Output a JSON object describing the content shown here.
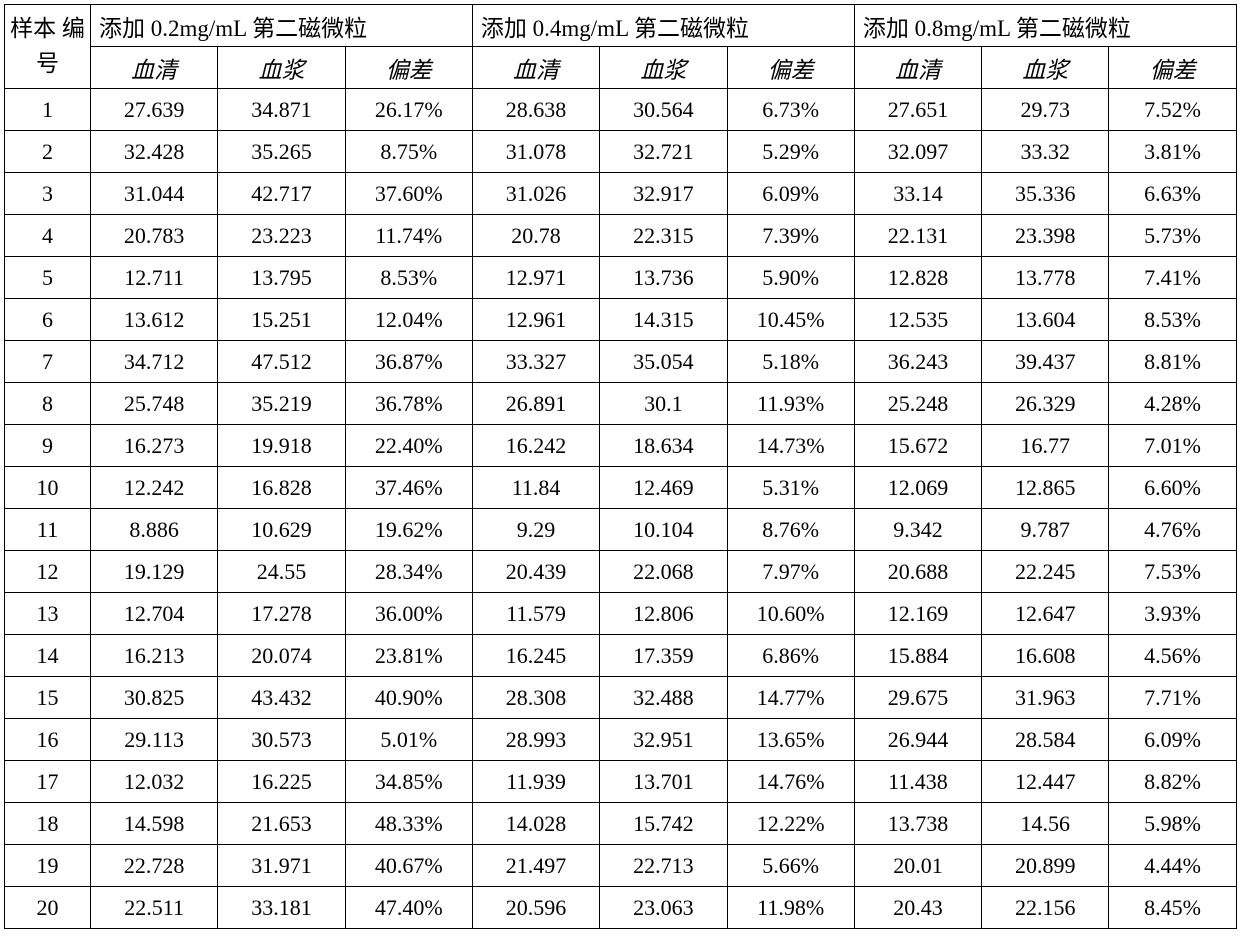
{
  "table": {
    "rowHeader": "样本\n编号",
    "groups": [
      {
        "title": "添加 0.2mg/mL 第二磁微粒",
        "subcols": [
          "血清",
          "血浆",
          "偏差"
        ]
      },
      {
        "title": "添加 0.4mg/mL 第二磁微粒",
        "subcols": [
          "血清",
          "血浆",
          "偏差"
        ]
      },
      {
        "title": "添加 0.8mg/mL 第二磁微粒",
        "subcols": [
          "血清",
          "血浆",
          "偏差"
        ]
      }
    ],
    "rows": [
      {
        "id": "1",
        "g0": [
          "27.639",
          "34.871",
          "26.17%"
        ],
        "g1": [
          "28.638",
          "30.564",
          "6.73%"
        ],
        "g2": [
          "27.651",
          "29.73",
          "7.52%"
        ]
      },
      {
        "id": "2",
        "g0": [
          "32.428",
          "35.265",
          "8.75%"
        ],
        "g1": [
          "31.078",
          "32.721",
          "5.29%"
        ],
        "g2": [
          "32.097",
          "33.32",
          "3.81%"
        ]
      },
      {
        "id": "3",
        "g0": [
          "31.044",
          "42.717",
          "37.60%"
        ],
        "g1": [
          "31.026",
          "32.917",
          "6.09%"
        ],
        "g2": [
          "33.14",
          "35.336",
          "6.63%"
        ]
      },
      {
        "id": "4",
        "g0": [
          "20.783",
          "23.223",
          "11.74%"
        ],
        "g1": [
          "20.78",
          "22.315",
          "7.39%"
        ],
        "g2": [
          "22.131",
          "23.398",
          "5.73%"
        ]
      },
      {
        "id": "5",
        "g0": [
          "12.711",
          "13.795",
          "8.53%"
        ],
        "g1": [
          "12.971",
          "13.736",
          "5.90%"
        ],
        "g2": [
          "12.828",
          "13.778",
          "7.41%"
        ]
      },
      {
        "id": "6",
        "g0": [
          "13.612",
          "15.251",
          "12.04%"
        ],
        "g1": [
          "12.961",
          "14.315",
          "10.45%"
        ],
        "g2": [
          "12.535",
          "13.604",
          "8.53%"
        ]
      },
      {
        "id": "7",
        "g0": [
          "34.712",
          "47.512",
          "36.87%"
        ],
        "g1": [
          "33.327",
          "35.054",
          "5.18%"
        ],
        "g2": [
          "36.243",
          "39.437",
          "8.81%"
        ]
      },
      {
        "id": "8",
        "g0": [
          "25.748",
          "35.219",
          "36.78%"
        ],
        "g1": [
          "26.891",
          "30.1",
          "11.93%"
        ],
        "g2": [
          "25.248",
          "26.329",
          "4.28%"
        ]
      },
      {
        "id": "9",
        "g0": [
          "16.273",
          "19.918",
          "22.40%"
        ],
        "g1": [
          "16.242",
          "18.634",
          "14.73%"
        ],
        "g2": [
          "15.672",
          "16.77",
          "7.01%"
        ]
      },
      {
        "id": "10",
        "g0": [
          "12.242",
          "16.828",
          "37.46%"
        ],
        "g1": [
          "11.84",
          "12.469",
          "5.31%"
        ],
        "g2": [
          "12.069",
          "12.865",
          "6.60%"
        ]
      },
      {
        "id": "11",
        "g0": [
          "8.886",
          "10.629",
          "19.62%"
        ],
        "g1": [
          "9.29",
          "10.104",
          "8.76%"
        ],
        "g2": [
          "9.342",
          "9.787",
          "4.76%"
        ]
      },
      {
        "id": "12",
        "g0": [
          "19.129",
          "24.55",
          "28.34%"
        ],
        "g1": [
          "20.439",
          "22.068",
          "7.97%"
        ],
        "g2": [
          "20.688",
          "22.245",
          "7.53%"
        ]
      },
      {
        "id": "13",
        "g0": [
          "12.704",
          "17.278",
          "36.00%"
        ],
        "g1": [
          "11.579",
          "12.806",
          "10.60%"
        ],
        "g2": [
          "12.169",
          "12.647",
          "3.93%"
        ]
      },
      {
        "id": "14",
        "g0": [
          "16.213",
          "20.074",
          "23.81%"
        ],
        "g1": [
          "16.245",
          "17.359",
          "6.86%"
        ],
        "g2": [
          "15.884",
          "16.608",
          "4.56%"
        ]
      },
      {
        "id": "15",
        "g0": [
          "30.825",
          "43.432",
          "40.90%"
        ],
        "g1": [
          "28.308",
          "32.488",
          "14.77%"
        ],
        "g2": [
          "29.675",
          "31.963",
          "7.71%"
        ]
      },
      {
        "id": "16",
        "g0": [
          "29.113",
          "30.573",
          "5.01%"
        ],
        "g1": [
          "28.993",
          "32.951",
          "13.65%"
        ],
        "g2": [
          "26.944",
          "28.584",
          "6.09%"
        ]
      },
      {
        "id": "17",
        "g0": [
          "12.032",
          "16.225",
          "34.85%"
        ],
        "g1": [
          "11.939",
          "13.701",
          "14.76%"
        ],
        "g2": [
          "11.438",
          "12.447",
          "8.82%"
        ]
      },
      {
        "id": "18",
        "g0": [
          "14.598",
          "21.653",
          "48.33%"
        ],
        "g1": [
          "14.028",
          "15.742",
          "12.22%"
        ],
        "g2": [
          "13.738",
          "14.56",
          "5.98%"
        ]
      },
      {
        "id": "19",
        "g0": [
          "22.728",
          "31.971",
          "40.67%"
        ],
        "g1": [
          "21.497",
          "22.713",
          "5.66%"
        ],
        "g2": [
          "20.01",
          "20.899",
          "4.44%"
        ]
      },
      {
        "id": "20",
        "g0": [
          "22.511",
          "33.181",
          "47.40%"
        ],
        "g1": [
          "20.596",
          "23.063",
          "11.98%"
        ],
        "g2": [
          "20.43",
          "22.156",
          "8.45%"
        ]
      }
    ]
  }
}
